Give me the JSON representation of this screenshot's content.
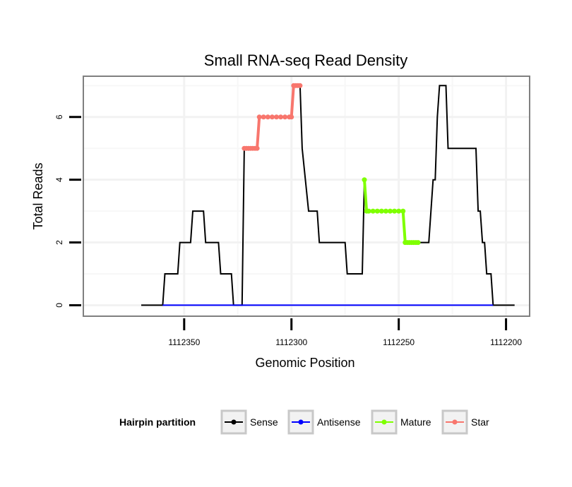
{
  "chart_data": {
    "type": "line",
    "title": "Small RNA-seq Read Density",
    "xlabel": "Genomic Position",
    "ylabel": "Total Reads",
    "x_reversed": true,
    "xlim": [
      1112397,
      1112189
    ],
    "ylim": [
      -0.35,
      7.3
    ],
    "x_ticks": [
      1112350,
      1112300,
      1112250,
      1112200
    ],
    "x_tick_labels": [
      "1112350",
      "1112300",
      "1112250",
      "1112200"
    ],
    "y_ticks": [
      0,
      2,
      4,
      6
    ],
    "y_tick_labels": [
      "0",
      "2",
      "4",
      "6"
    ],
    "grid": true,
    "legend": {
      "title": "Hairpin partition",
      "position": "bottom",
      "entries": [
        {
          "label": "Sense",
          "color": "#000000"
        },
        {
          "label": "Antisense",
          "color": "#0000ff"
        },
        {
          "label": "Mature",
          "color": "#7fff00"
        },
        {
          "label": "Star",
          "color": "#f8766d"
        }
      ]
    },
    "series": [
      {
        "name": "Sense",
        "color": "#000000",
        "points": [
          [
            1112370,
            0
          ],
          [
            1112360,
            0
          ],
          [
            1112359,
            1
          ],
          [
            1112353,
            1
          ],
          [
            1112352,
            2
          ],
          [
            1112347,
            2
          ],
          [
            1112346,
            3
          ],
          [
            1112341,
            3
          ],
          [
            1112340,
            2
          ],
          [
            1112334,
            2
          ],
          [
            1112333,
            1
          ],
          [
            1112328,
            1
          ],
          [
            1112327,
            0
          ],
          [
            1112323,
            0
          ],
          [
            1112322,
            5
          ],
          [
            1112316,
            5
          ],
          [
            1112315,
            6
          ],
          [
            1112300,
            6
          ],
          [
            1112299,
            7
          ],
          [
            1112296,
            7
          ],
          [
            1112295,
            5
          ],
          [
            1112292,
            3
          ],
          [
            1112288,
            3
          ],
          [
            1112287,
            2
          ],
          [
            1112275,
            2
          ],
          [
            1112274,
            1
          ],
          [
            1112267,
            1
          ],
          [
            1112266,
            4
          ],
          [
            1112265,
            3
          ],
          [
            1112248,
            3
          ],
          [
            1112247,
            2
          ],
          [
            1112236,
            2
          ],
          [
            1112234,
            4
          ],
          [
            1112233,
            4
          ],
          [
            1112232,
            6
          ],
          [
            1112231,
            7
          ],
          [
            1112228,
            7
          ],
          [
            1112227,
            5
          ],
          [
            1112214,
            5
          ],
          [
            1112213,
            3
          ],
          [
            1112212,
            3
          ],
          [
            1112211,
            2
          ],
          [
            1112210,
            2
          ],
          [
            1112209,
            1
          ],
          [
            1112207,
            1
          ],
          [
            1112206,
            0
          ],
          [
            1112196,
            0
          ]
        ]
      },
      {
        "name": "Antisense",
        "color": "#0000ff",
        "points": [
          [
            1112360,
            0
          ],
          [
            1112206,
            0
          ]
        ]
      },
      {
        "name": "Mature",
        "color": "#7fff00",
        "points": [
          [
            1112266,
            4
          ],
          [
            1112265,
            3
          ],
          [
            1112264,
            3
          ],
          [
            1112262,
            3
          ],
          [
            1112260,
            3
          ],
          [
            1112258,
            3
          ],
          [
            1112256,
            3
          ],
          [
            1112254,
            3
          ],
          [
            1112252,
            3
          ],
          [
            1112250,
            3
          ],
          [
            1112248,
            3
          ],
          [
            1112247,
            2
          ],
          [
            1112246,
            2
          ],
          [
            1112245,
            2
          ],
          [
            1112244,
            2
          ],
          [
            1112243,
            2
          ],
          [
            1112242,
            2
          ],
          [
            1112241,
            2
          ]
        ]
      },
      {
        "name": "Star",
        "color": "#f8766d",
        "points": [
          [
            1112322,
            5
          ],
          [
            1112321,
            5
          ],
          [
            1112320,
            5
          ],
          [
            1112319,
            5
          ],
          [
            1112318,
            5
          ],
          [
            1112317,
            5
          ],
          [
            1112316,
            5
          ],
          [
            1112315,
            6
          ],
          [
            1112313,
            6
          ],
          [
            1112311,
            6
          ],
          [
            1112309,
            6
          ],
          [
            1112307,
            6
          ],
          [
            1112305,
            6
          ],
          [
            1112303,
            6
          ],
          [
            1112301,
            6
          ],
          [
            1112300,
            6
          ],
          [
            1112299,
            7
          ],
          [
            1112298,
            7
          ],
          [
            1112297,
            7
          ],
          [
            1112296,
            7
          ]
        ]
      }
    ]
  }
}
